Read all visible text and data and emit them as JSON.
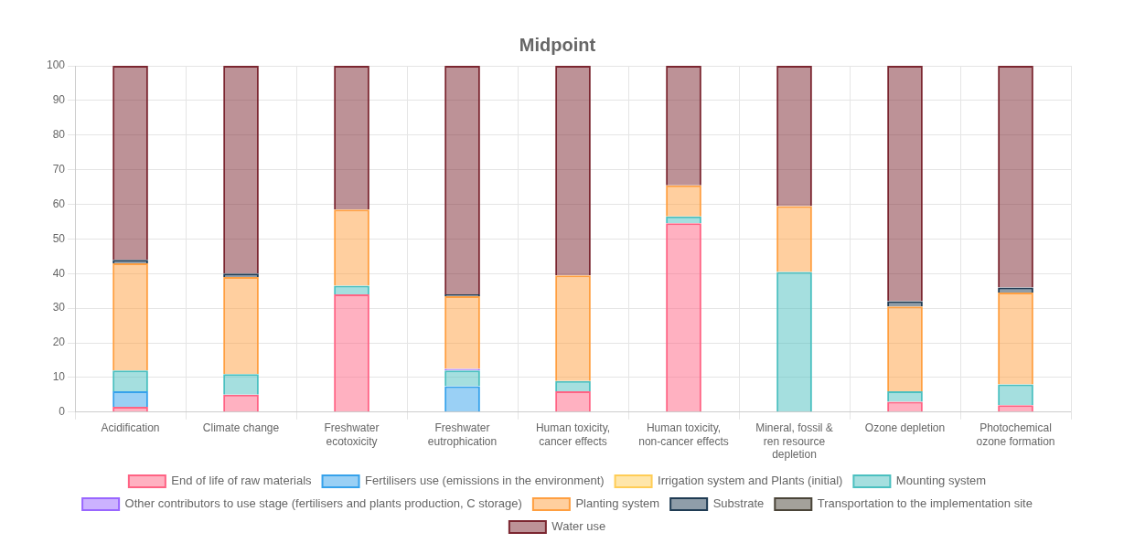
{
  "chart_data": {
    "type": "bar",
    "title": "Midpoint",
    "stacked": true,
    "grid": true,
    "legend": "bottom",
    "categories": [
      "Acidification",
      "Climate change",
      "Freshwater ecotoxicity",
      "Freshwater eutrophication",
      "Human toxicity, cancer effects",
      "Human toxicity, non-cancer effects",
      "Mineral, fossil & ren resource depletion",
      "Ozone depletion",
      "Photochemical ozone formation"
    ],
    "ylim": [
      0,
      100
    ],
    "yticks": [
      0,
      10,
      20,
      30,
      40,
      50,
      60,
      70,
      80,
      90,
      100
    ],
    "series": [
      {
        "name": "End of life of raw materials",
        "color": "#ff6384",
        "values": [
          1.5,
          5,
          34,
          null,
          6,
          54.5,
          null,
          3,
          2
        ]
      },
      {
        "name": "Fertilisers use (emissions in the environment)",
        "color": "#36a2eb",
        "values": [
          4.5,
          null,
          null,
          7.5,
          null,
          null,
          null,
          null,
          null
        ]
      },
      {
        "name": "Irrigation system and Plants (initial)",
        "color": "#ffcd56",
        "values": [
          null,
          null,
          null,
          null,
          null,
          null,
          null,
          null,
          null
        ]
      },
      {
        "name": "Mounting system",
        "color": "#4bc0c0",
        "values": [
          6,
          6,
          2.5,
          4.5,
          3,
          2,
          40.5,
          3,
          6
        ]
      },
      {
        "name": "Other contributors to use stage (fertilisers and plants production, C storage)",
        "color": "#9966ff",
        "values": [
          null,
          null,
          null,
          0.5,
          null,
          null,
          null,
          null,
          null
        ]
      },
      {
        "name": "Planting system",
        "color": "#ff9f40",
        "values": [
          31,
          28,
          22,
          21,
          30.5,
          9,
          19,
          24.5,
          26.5
        ]
      },
      {
        "name": "Substrate",
        "color": "#1f3b53",
        "values": [
          1,
          1,
          null,
          0.5,
          null,
          null,
          null,
          1.5,
          1.5
        ]
      },
      {
        "name": "Transportation to the implementation site",
        "color": "#4a4438",
        "values": [
          null,
          null,
          null,
          null,
          null,
          null,
          null,
          null,
          null
        ]
      },
      {
        "name": "Water use",
        "color": "#7b2630",
        "values": [
          56,
          60,
          41.5,
          66,
          60.5,
          34.5,
          40.5,
          68,
          64
        ]
      }
    ]
  }
}
